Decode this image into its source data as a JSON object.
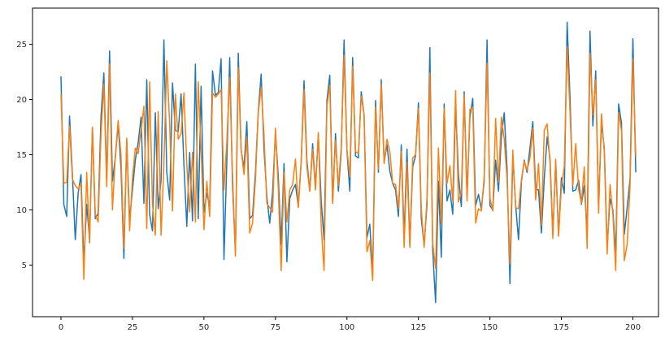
{
  "chart_data": {
    "type": "line",
    "title": "",
    "xlabel": "",
    "ylabel": "",
    "xlim": [
      -9.95,
      208.95
    ],
    "ylim": [
      0.32,
      28.28
    ],
    "xticks": [
      0,
      25,
      50,
      75,
      100,
      125,
      150,
      175,
      200
    ],
    "yticks": [
      5,
      10,
      15,
      20,
      25
    ],
    "grid": false,
    "legend": "none",
    "x_start": 0,
    "x_step": 1,
    "series": [
      {
        "color": "#1f77b4",
        "values": [
          22.1,
          10.5,
          9.4,
          18.5,
          13.2,
          7.3,
          11.5,
          13.2,
          5.2,
          10.5,
          7.3,
          17.4,
          9.2,
          9.7,
          18.5,
          22.4,
          12.6,
          24.4,
          12.6,
          14.7,
          17.8,
          13.7,
          5.6,
          16.3,
          9.1,
          11.8,
          14.5,
          16.1,
          18.4,
          10.6,
          21.8,
          9.6,
          8.1,
          18.8,
          10.1,
          12.7,
          25.4,
          13.4,
          10.9,
          21.5,
          17.2,
          17.1,
          20.5,
          14.1,
          8.5,
          15.2,
          9.0,
          23.2,
          9.2,
          21.2,
          9.8,
          11.5,
          10.3,
          22.6,
          20.4,
          20.6,
          23.7,
          5.5,
          14.4,
          23.8,
          12.1,
          6.2,
          24.2,
          15.4,
          13.8,
          18.0,
          9.2,
          9.5,
          13.4,
          18.9,
          22.3,
          15.5,
          11.2,
          8.8,
          11.6,
          17.0,
          13.0,
          6.9,
          14.2,
          5.3,
          11.0,
          11.8,
          12.3,
          10.3,
          14.4,
          21.7,
          14.5,
          11.7,
          16.0,
          12.0,
          16.8,
          10.8,
          7.3,
          19.9,
          22.2,
          10.6,
          16.9,
          11.7,
          15.2,
          25.4,
          15.4,
          11.7,
          23.8,
          14.9,
          14.7,
          20.7,
          18.6,
          7.5,
          8.7,
          4.2,
          19.9,
          13.4,
          21.8,
          14.3,
          15.9,
          13.5,
          12.4,
          11.8,
          9.4,
          15.9,
          7.6,
          15.5,
          6.8,
          13.9,
          14.9,
          19.7,
          9.2,
          6.8,
          10.5,
          24.7,
          6.3,
          1.6,
          12.6,
          5.7,
          19.6,
          10.8,
          11.8,
          9.6,
          19.5,
          13.2,
          10.3,
          20.7,
          11.3,
          18.4,
          20.1,
          10.4,
          11.4,
          10.1,
          12.6,
          25.4,
          10.4,
          10.0,
          14.5,
          11.7,
          16.6,
          18.8,
          13.7,
          3.3,
          14.8,
          10.4,
          7.3,
          12.5,
          14.5,
          13.4,
          15.6,
          18.0,
          11.9,
          11.8,
          7.9,
          12.8,
          16.6,
          14.7,
          7.8,
          14.3,
          7.7,
          12.9,
          11.5,
          27.0,
          20.2,
          11.7,
          11.8,
          12.7,
          10.5,
          12.2,
          8.0,
          26.2,
          17.6,
          22.6,
          10.2,
          17.9,
          15.6,
          6.6,
          11.0,
          10.0,
          5.9,
          19.6,
          17.9,
          7.8,
          10.2,
          12.8,
          25.5,
          13.4
        ]
      },
      {
        "color": "#ff7f0e",
        "values": [
          20.5,
          12.4,
          12.5,
          17.6,
          12.8,
          12.2,
          11.9,
          12.4,
          3.7,
          13.4,
          7.0,
          17.5,
          9.6,
          8.9,
          16.9,
          21.4,
          12.1,
          23.2,
          10.0,
          14.8,
          18.1,
          14.9,
          6.5,
          16.5,
          8.1,
          12.9,
          15.6,
          15.1,
          17.2,
          19.4,
          8.3,
          21.6,
          10.5,
          7.7,
          18.9,
          7.7,
          14.2,
          23.5,
          17.8,
          9.9,
          20.5,
          16.4,
          16.9,
          20.6,
          14.1,
          9.8,
          15.2,
          8.9,
          21.6,
          15.4,
          8.2,
          12.6,
          9.4,
          20.6,
          20.2,
          20.5,
          20.9,
          11.8,
          16.2,
          22.0,
          13.1,
          5.8,
          22.9,
          15.5,
          13.2,
          16.6,
          7.9,
          8.8,
          12.7,
          18.8,
          21.1,
          16.8,
          10.6,
          10.2,
          9.8,
          17.4,
          11.9,
          4.5,
          13.4,
          8.9,
          11.8,
          12.3,
          14.6,
          10.2,
          14.3,
          20.9,
          13.9,
          11.7,
          15.5,
          11.8,
          17.0,
          8.5,
          4.5,
          19.4,
          21.3,
          10.6,
          16.3,
          12.2,
          15.6,
          24.0,
          15.5,
          13.0,
          23.0,
          15.3,
          15.1,
          20.3,
          18.6,
          6.2,
          7.2,
          3.6,
          19.3,
          13.7,
          21.4,
          14.2,
          16.4,
          15.3,
          12.4,
          12.3,
          10.1,
          15.3,
          6.6,
          14.3,
          6.6,
          14.7,
          15.0,
          19.2,
          10.1,
          6.6,
          11.1,
          22.4,
          7.0,
          4.7,
          15.6,
          8.7,
          19.2,
          12.4,
          14.0,
          10.8,
          20.8,
          10.7,
          11.6,
          20.4,
          10.8,
          19.1,
          19.3,
          8.8,
          10.1,
          9.9,
          13.0,
          23.3,
          11.1,
          9.9,
          18.3,
          12.5,
          18.4,
          16.4,
          12.8,
          5.1,
          15.4,
          10.2,
          10.1,
          12.7,
          14.4,
          13.6,
          14.7,
          17.4,
          10.9,
          14.2,
          8.6,
          17.2,
          17.8,
          14.3,
          7.4,
          14.6,
          7.6,
          12.1,
          13.9,
          24.8,
          18.9,
          12.2,
          16.0,
          11.9,
          10.6,
          13.9,
          6.5,
          24.2,
          18.6,
          21.8,
          9.7,
          18.7,
          15.2,
          6.0,
          12.3,
          9.6,
          4.5,
          18.8,
          17.2,
          5.4,
          6.9,
          12.2,
          23.7,
          14.8
        ]
      }
    ]
  }
}
